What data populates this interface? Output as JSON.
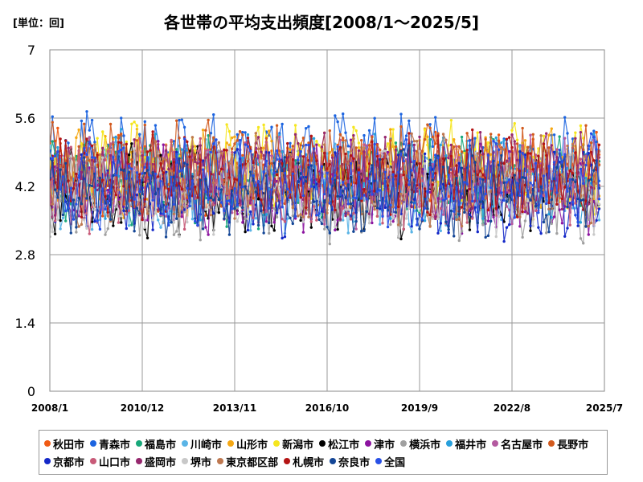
{
  "unit_label": "[単位：回]",
  "chart_data": {
    "type": "line",
    "title": "各世帯の平均支出頻度[2008/1～2025/5]",
    "y_ticks": [
      "0",
      "1.4",
      "2.8",
      "4.2",
      "5.6",
      "7"
    ],
    "ylim": [
      0,
      7
    ],
    "x_ticks": [
      "2008/1",
      "2010/12",
      "2013/11",
      "2016/10",
      "2019/9",
      "2022/8",
      "2025/7"
    ],
    "x_start": "2008/1",
    "x_end": "2025/5",
    "grid": true,
    "legend_position": "bottom",
    "series": [
      {
        "name": "秋田市",
        "color": "#f05a14",
        "base": 4.4
      },
      {
        "name": "青森市",
        "color": "#1c64e0",
        "base": 4.8
      },
      {
        "name": "福島市",
        "color": "#18a87a",
        "base": 4.3
      },
      {
        "name": "川崎市",
        "color": "#5ab4e6",
        "base": 4.2
      },
      {
        "name": "山形市",
        "color": "#f5a814",
        "base": 4.5
      },
      {
        "name": "新潟市",
        "color": "#f5e61e",
        "base": 4.6
      },
      {
        "name": "松江市",
        "color": "#000000",
        "base": 4.1
      },
      {
        "name": "津市",
        "color": "#8c14a0",
        "base": 4.2
      },
      {
        "name": "横浜市",
        "color": "#a0a0a0",
        "base": 4.0
      },
      {
        "name": "福井市",
        "color": "#28a0dc",
        "base": 4.4
      },
      {
        "name": "名古屋市",
        "color": "#b45aa0",
        "base": 4.3
      },
      {
        "name": "長野市",
        "color": "#d25a1e",
        "base": 4.6
      },
      {
        "name": "京都市",
        "color": "#1428c8",
        "base": 4.0
      },
      {
        "name": "山口市",
        "color": "#c85a78",
        "base": 4.2
      },
      {
        "name": "盛岡市",
        "color": "#96286e",
        "base": 4.4
      },
      {
        "name": "堺市",
        "color": "#c8c8c8",
        "base": 4.1
      },
      {
        "name": "東京都区部",
        "color": "#be7850",
        "base": 4.3
      },
      {
        "name": "札幌市",
        "color": "#b41414",
        "base": 4.4
      },
      {
        "name": "奈良市",
        "color": "#144696",
        "base": 4.1
      },
      {
        "name": "全国",
        "color": "#2850e6",
        "base": 4.3
      }
    ]
  }
}
